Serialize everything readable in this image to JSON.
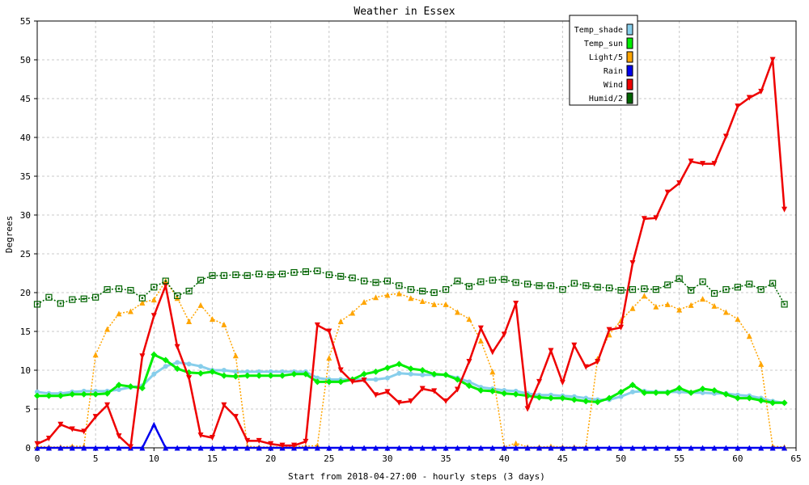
{
  "chart_data": {
    "type": "line",
    "title": "Weather in Essex",
    "xlabel": "Start from 2018-04-27:00 - hourly steps (3 days)",
    "ylabel": "Degrees",
    "xlim": [
      0,
      65
    ],
    "ylim": [
      0,
      55
    ],
    "xticks": [
      0,
      5,
      10,
      15,
      20,
      25,
      30,
      35,
      40,
      45,
      50,
      55,
      60,
      65
    ],
    "yticks": [
      0,
      5,
      10,
      15,
      20,
      25,
      30,
      35,
      40,
      45,
      50,
      55
    ],
    "grid": true,
    "legend_position": "top-right",
    "series": [
      {
        "name": "Temp_shade",
        "color": "#87ceeb",
        "style": "solid",
        "marker": "circle",
        "values": [
          7.2,
          7.0,
          7.0,
          7.2,
          7.3,
          7.3,
          7.3,
          7.5,
          7.8,
          8.0,
          9.5,
          10.5,
          11.0,
          10.8,
          10.5,
          10.0,
          10.0,
          9.8,
          9.8,
          9.8,
          9.8,
          9.8,
          9.8,
          9.8,
          9.0,
          8.8,
          8.8,
          8.8,
          8.8,
          8.8,
          9.0,
          9.6,
          9.5,
          9.4,
          9.4,
          9.4,
          9.0,
          8.5,
          7.8,
          7.6,
          7.4,
          7.3,
          7.0,
          6.8,
          6.8,
          6.7,
          6.6,
          6.4,
          6.2,
          6.2,
          6.6,
          7.2,
          7.3,
          7.2,
          7.2,
          7.2,
          7.1,
          7.1,
          7.0,
          7.0,
          6.8,
          6.7,
          6.4,
          6.0,
          5.8
        ]
      },
      {
        "name": "Temp_sun",
        "color": "#00ee00",
        "style": "solid",
        "marker": "diamond",
        "values": [
          6.7,
          6.7,
          6.7,
          6.9,
          6.9,
          6.9,
          7.0,
          8.1,
          7.9,
          7.7,
          12.0,
          11.3,
          10.2,
          9.7,
          9.6,
          9.8,
          9.3,
          9.2,
          9.3,
          9.3,
          9.3,
          9.3,
          9.5,
          9.5,
          8.5,
          8.5,
          8.5,
          8.8,
          9.5,
          9.8,
          10.3,
          10.8,
          10.2,
          10.0,
          9.5,
          9.4,
          8.8,
          8.0,
          7.4,
          7.3,
          7.0,
          6.9,
          6.7,
          6.5,
          6.4,
          6.4,
          6.2,
          6.0,
          5.9,
          6.4,
          7.2,
          8.1,
          7.1,
          7.1,
          7.1,
          7.7,
          7.1,
          7.6,
          7.4,
          6.9,
          6.4,
          6.4,
          6.1,
          5.8,
          5.8
        ]
      },
      {
        "name": "Light/5",
        "color": "#ffa500",
        "style": "dotted",
        "marker": "triangle",
        "values": [
          0.2,
          0.1,
          0.1,
          0.2,
          0.2,
          12.0,
          15.3,
          17.3,
          17.6,
          18.7,
          19.1,
          21.5,
          19.3,
          16.3,
          18.4,
          16.6,
          15.9,
          11.9,
          0.2,
          0.1,
          0.1,
          0.1,
          0.2,
          0.2,
          0.3,
          11.6,
          16.3,
          17.4,
          18.8,
          19.4,
          19.7,
          19.9,
          19.3,
          18.9,
          18.5,
          18.5,
          17.5,
          16.6,
          13.8,
          9.8,
          0.1,
          0.6,
          0.1,
          0.1,
          0.2,
          0.1,
          0.1,
          0.1,
          11.5,
          14.6,
          16.4,
          18.0,
          19.6,
          18.2,
          18.5,
          17.8,
          18.4,
          19.2,
          18.3,
          17.5,
          16.6,
          14.4,
          10.8,
          0.2,
          0.1
        ]
      },
      {
        "name": "Rain",
        "color": "#0000ee",
        "style": "solid",
        "marker": "triangle",
        "values": [
          0,
          0,
          0,
          0,
          0,
          0,
          0,
          0,
          0,
          0,
          3.0,
          0,
          0,
          0,
          0,
          0,
          0,
          0,
          0,
          0,
          0,
          0,
          0,
          0,
          0,
          0,
          0,
          0,
          0,
          0,
          0,
          0,
          0,
          0,
          0,
          0,
          0,
          0,
          0,
          0,
          0,
          0,
          0,
          0,
          0,
          0,
          0,
          0,
          0,
          0,
          0,
          0,
          0,
          0,
          0,
          0,
          0,
          0,
          0,
          0,
          0,
          0,
          0,
          0,
          0
        ]
      },
      {
        "name": "Wind",
        "color": "#ee0000",
        "style": "solid",
        "marker": "triangle-down",
        "values": [
          0.5,
          1.2,
          3.0,
          2.4,
          2.1,
          4.0,
          5.5,
          1.5,
          0.1,
          11.8,
          17.0,
          20.9,
          13.0,
          9.0,
          1.6,
          1.3,
          5.5,
          4.0,
          0.9,
          0.9,
          0.5,
          0.3,
          0.3,
          0.8,
          15.8,
          15.0,
          10.0,
          8.5,
          8.7,
          6.8,
          7.2,
          5.8,
          6.0,
          7.6,
          7.3,
          6.0,
          7.5,
          11.1,
          15.4,
          12.3,
          14.6,
          18.6,
          5.0,
          8.5,
          12.5,
          8.4,
          13.2,
          10.4,
          11.1,
          15.2,
          15.5,
          23.8,
          29.5,
          29.6,
          32.9,
          34.1,
          36.9,
          36.6,
          36.6,
          40.1,
          44.0,
          45.1,
          45.9,
          50.0,
          30.7
        ]
      },
      {
        "name": "Humid/2",
        "color": "#006400",
        "style": "dotted",
        "marker": "square",
        "values": [
          18.5,
          19.4,
          18.6,
          19.1,
          19.2,
          19.4,
          20.4,
          20.5,
          20.3,
          19.3,
          20.7,
          21.5,
          19.6,
          20.2,
          21.6,
          22.2,
          22.2,
          22.3,
          22.2,
          22.4,
          22.3,
          22.4,
          22.6,
          22.7,
          22.8,
          22.3,
          22.1,
          21.9,
          21.5,
          21.3,
          21.5,
          20.9,
          20.4,
          20.2,
          20.0,
          20.4,
          21.5,
          20.8,
          21.4,
          21.6,
          21.7,
          21.3,
          21.1,
          20.9,
          20.9,
          20.4,
          21.2,
          20.9,
          20.7,
          20.6,
          20.3,
          20.4,
          20.5,
          20.4,
          21.0,
          21.8,
          20.3,
          21.4,
          19.9,
          20.4,
          20.7,
          21.1,
          20.4,
          21.2,
          18.5
        ]
      }
    ]
  }
}
